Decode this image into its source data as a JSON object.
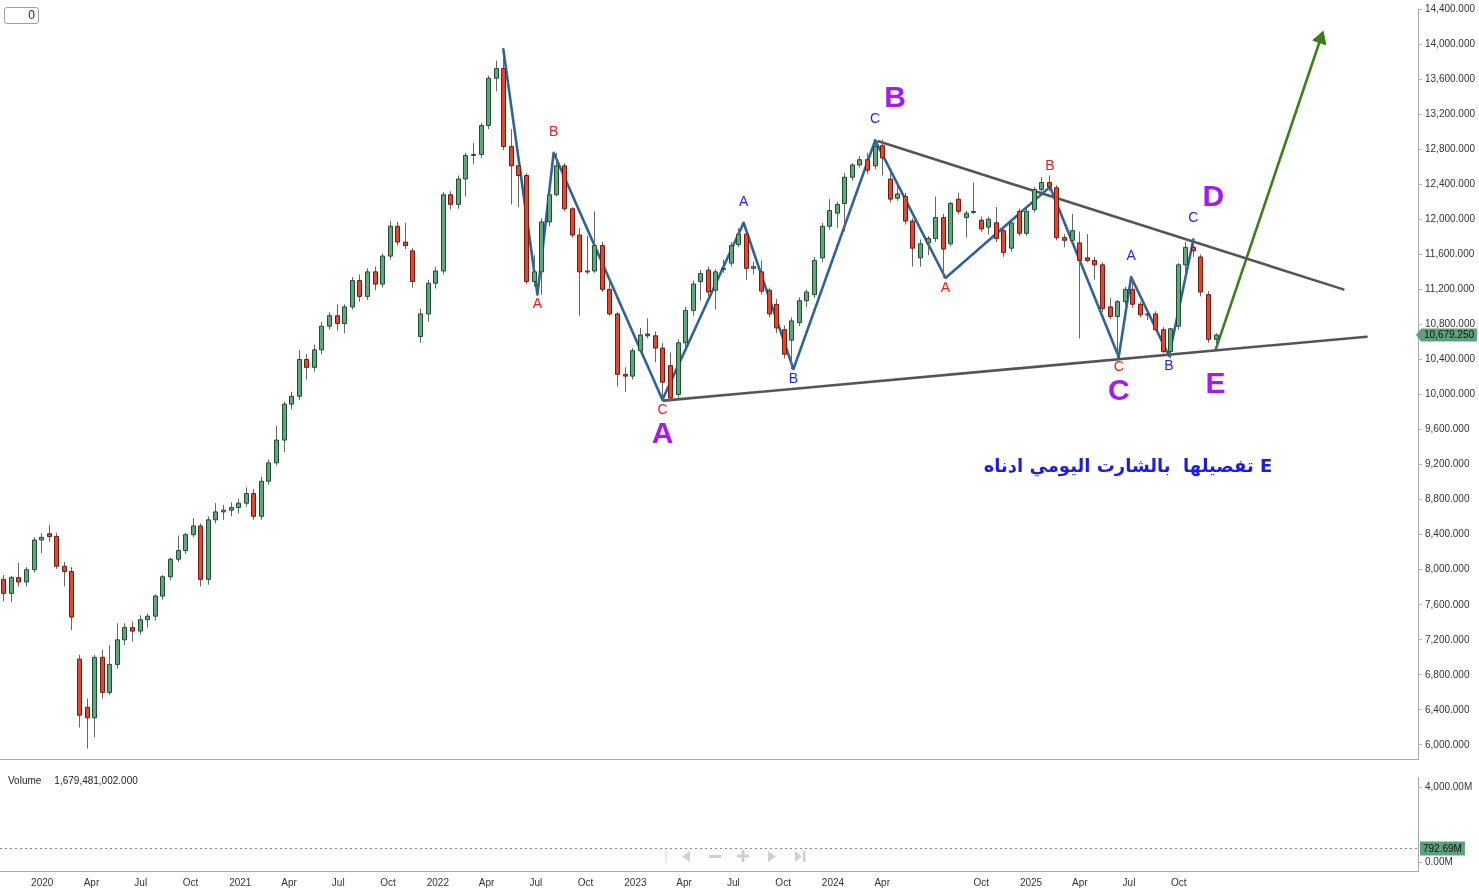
{
  "chart_data": [
    {
      "type": "candlestick",
      "x": [
        "2019-10-21",
        "2019-11-04",
        "2019-11-18",
        "2019-12-02",
        "2019-12-16",
        "2019-12-30",
        "2020-01-13",
        "2020-01-27",
        "2020-02-10",
        "2020-02-24",
        "2020-03-09",
        "2020-03-23",
        "2020-04-06",
        "2020-04-20",
        "2020-05-04",
        "2020-05-18",
        "2020-06-01",
        "2020-06-15",
        "2020-06-29",
        "2020-07-13",
        "2020-07-27",
        "2020-08-10",
        "2020-08-24",
        "2020-09-07",
        "2020-09-21",
        "2020-10-05",
        "2020-10-19",
        "2020-11-02",
        "2020-11-16",
        "2020-11-30",
        "2020-12-14",
        "2020-12-28",
        "2021-01-11",
        "2021-01-25",
        "2021-02-08",
        "2021-02-22",
        "2021-03-08",
        "2021-03-22",
        "2021-04-05",
        "2021-04-19",
        "2021-05-03",
        "2021-05-17",
        "2021-05-31",
        "2021-06-14",
        "2021-06-28",
        "2021-07-12",
        "2021-07-26",
        "2021-08-09",
        "2021-08-23",
        "2021-09-06",
        "2021-09-20",
        "2021-10-04",
        "2021-10-18",
        "2021-11-01",
        "2021-11-15",
        "2021-11-29",
        "2021-12-13",
        "2021-12-27",
        "2022-01-10",
        "2022-01-24",
        "2022-02-07",
        "2022-02-21",
        "2022-03-07",
        "2022-03-21",
        "2022-04-04",
        "2022-04-18",
        "2022-05-02",
        "2022-05-16",
        "2022-05-30",
        "2022-06-13",
        "2022-06-27",
        "2022-07-11",
        "2022-07-25",
        "2022-08-08",
        "2022-08-22",
        "2022-09-05",
        "2022-09-19",
        "2022-10-03",
        "2022-10-17",
        "2022-10-31",
        "2022-11-14",
        "2022-11-28",
        "2022-12-12",
        "2022-12-26",
        "2023-01-09",
        "2023-01-23",
        "2023-02-06",
        "2023-02-20",
        "2023-03-06",
        "2023-03-20",
        "2023-04-03",
        "2023-04-17",
        "2023-05-01",
        "2023-05-15",
        "2023-05-29",
        "2023-06-12",
        "2023-06-26",
        "2023-07-10",
        "2023-07-24",
        "2023-08-07",
        "2023-08-21",
        "2023-09-04",
        "2023-09-18",
        "2023-10-02",
        "2023-10-16",
        "2023-10-30",
        "2023-11-13",
        "2023-11-27",
        "2023-12-11",
        "2023-12-25",
        "2024-01-08",
        "2024-01-22",
        "2024-02-05",
        "2024-02-19",
        "2024-03-04",
        "2024-03-18",
        "2024-04-01",
        "2024-04-15",
        "2024-04-29",
        "2024-05-13",
        "2024-05-27",
        "2024-06-10",
        "2024-06-24",
        "2024-07-08",
        "2024-07-22",
        "2024-08-05",
        "2024-08-19",
        "2024-09-02",
        "2024-09-16",
        "2024-09-30",
        "2024-10-14",
        "2024-10-28",
        "2024-11-11",
        "2024-11-25",
        "2024-12-09",
        "2024-12-23",
        "2025-01-06",
        "2025-01-20",
        "2025-02-03",
        "2025-02-17",
        "2025-03-03",
        "2025-03-17",
        "2025-03-31",
        "2025-04-14",
        "2025-04-28",
        "2025-05-12",
        "2025-05-26",
        "2025-06-09",
        "2025-06-23",
        "2025-07-07",
        "2025-07-21",
        "2025-08-04",
        "2025-08-18",
        "2025-09-01",
        "2025-09-15",
        "2025-09-29",
        "2025-10-13",
        "2025-10-27",
        "2025-11-10",
        "2025-11-24",
        "2025-12-08"
      ],
      "ohlc": [
        [
          7890,
          7940,
          7640,
          7730
        ],
        [
          7730,
          7930,
          7630,
          7910
        ],
        [
          7910,
          8080,
          7810,
          7860
        ],
        [
          7860,
          8030,
          7810,
          8000
        ],
        [
          8000,
          8370,
          7970,
          8340
        ],
        [
          8340,
          8420,
          8190,
          8370
        ],
        [
          8410,
          8510,
          8320,
          8380
        ],
        [
          8380,
          8420,
          8010,
          8040
        ],
        [
          8040,
          8090,
          7810,
          7980
        ],
        [
          7980,
          8030,
          7310,
          7460
        ],
        [
          6980,
          7030,
          6200,
          6340
        ],
        [
          6430,
          6530,
          5960,
          6310
        ],
        [
          6310,
          7030,
          6090,
          7000
        ],
        [
          7000,
          7090,
          6530,
          6600
        ],
        [
          6600,
          7140,
          6570,
          6920
        ],
        [
          6920,
          7390,
          6870,
          7200
        ],
        [
          7200,
          7390,
          7140,
          7340
        ],
        [
          7340,
          7410,
          7180,
          7300
        ],
        [
          7300,
          7480,
          7260,
          7430
        ],
        [
          7430,
          7500,
          7340,
          7470
        ],
        [
          7470,
          7720,
          7420,
          7700
        ],
        [
          7700,
          7940,
          7660,
          7920
        ],
        [
          7920,
          8140,
          7880,
          8120
        ],
        [
          8120,
          8390,
          8090,
          8220
        ],
        [
          8220,
          8420,
          8180,
          8400
        ],
        [
          8400,
          8590,
          8370,
          8500
        ],
        [
          8500,
          8530,
          7810,
          7890
        ],
        [
          7890,
          8610,
          7830,
          8570
        ],
        [
          8570,
          8760,
          8530,
          8660
        ],
        [
          8660,
          8740,
          8570,
          8680
        ],
        [
          8680,
          8770,
          8610,
          8710
        ],
        [
          8710,
          8810,
          8640,
          8760
        ],
        [
          8760,
          8940,
          8720,
          8870
        ],
        [
          8870,
          8920,
          8570,
          8610
        ],
        [
          8610,
          9060,
          8570,
          9010
        ],
        [
          9010,
          9260,
          8970,
          9220
        ],
        [
          9220,
          9640,
          9190,
          9480
        ],
        [
          9480,
          9920,
          9340,
          9890
        ],
        [
          9890,
          10030,
          9830,
          9980
        ],
        [
          9980,
          10510,
          9940,
          10400
        ],
        [
          10400,
          10460,
          10170,
          10310
        ],
        [
          10310,
          10570,
          10260,
          10510
        ],
        [
          10510,
          10830,
          10460,
          10780
        ],
        [
          10780,
          10940,
          10740,
          10900
        ],
        [
          10900,
          11030,
          10730,
          10810
        ],
        [
          10810,
          11030,
          10700,
          11000
        ],
        [
          11000,
          11340,
          10970,
          11300
        ],
        [
          11300,
          11370,
          11060,
          11120
        ],
        [
          11120,
          11440,
          11080,
          11400
        ],
        [
          11400,
          11460,
          11190,
          11260
        ],
        [
          11260,
          11610,
          11220,
          11580
        ],
        [
          11580,
          11980,
          11540,
          11920
        ],
        [
          11920,
          11970,
          11700,
          11740
        ],
        [
          11740,
          11960,
          11660,
          11700
        ],
        [
          11640,
          11670,
          11220,
          11290
        ],
        [
          10660,
          10980,
          10590,
          10920
        ],
        [
          10920,
          11310,
          10830,
          11270
        ],
        [
          11270,
          11460,
          11210,
          11410
        ],
        [
          11410,
          12310,
          11370,
          12280
        ],
        [
          12280,
          12320,
          12110,
          12170
        ],
        [
          12170,
          12500,
          12120,
          12460
        ],
        [
          12460,
          12760,
          12260,
          12730
        ],
        [
          12730,
          12870,
          12630,
          12740
        ],
        [
          12740,
          13100,
          12700,
          13070
        ],
        [
          13070,
          13640,
          13030,
          13610
        ],
        [
          13610,
          13810,
          13460,
          13720
        ],
        [
          13720,
          13840,
          12790,
          12830
        ],
        [
          12830,
          13030,
          12170,
          12610
        ],
        [
          12610,
          12640,
          12140,
          12500
        ],
        [
          12500,
          12530,
          11260,
          11290
        ],
        [
          11290,
          11590,
          11230,
          11400
        ],
        [
          11400,
          12010,
          11140,
          11970
        ],
        [
          11970,
          12310,
          11920,
          12280
        ],
        [
          12280,
          12760,
          12260,
          12610
        ],
        [
          12610,
          12640,
          12090,
          12120
        ],
        [
          12120,
          12140,
          11790,
          11820
        ],
        [
          11820,
          11900,
          10900,
          11400
        ],
        [
          11400,
          11810,
          11370,
          11410
        ],
        [
          11410,
          12090,
          11390,
          11700
        ],
        [
          11700,
          11740,
          11170,
          11200
        ],
        [
          11200,
          11340,
          10900,
          10920
        ],
        [
          10920,
          10940,
          10090,
          10230
        ],
        [
          10230,
          10310,
          10030,
          10210
        ],
        [
          10210,
          10530,
          10170,
          10500
        ],
        [
          10500,
          10760,
          10480,
          10680
        ],
        [
          10690,
          10870,
          10640,
          10670
        ],
        [
          10670,
          10720,
          10370,
          10530
        ],
        [
          10530,
          10590,
          9930,
          10140
        ],
        [
          10330,
          10480,
          9920,
          9960
        ],
        [
          10000,
          10630,
          9940,
          10590
        ],
        [
          10590,
          11000,
          10540,
          10960
        ],
        [
          10960,
          11300,
          10900,
          11260
        ],
        [
          11290,
          11420,
          11070,
          11380
        ],
        [
          11420,
          11460,
          11120,
          11170
        ],
        [
          11190,
          11430,
          10970,
          11400
        ],
        [
          11430,
          11540,
          11390,
          11440
        ],
        [
          11500,
          11740,
          11460,
          11700
        ],
        [
          11710,
          11900,
          11680,
          11830
        ],
        [
          11830,
          11870,
          11310,
          11440
        ],
        [
          11440,
          11520,
          11370,
          11460
        ],
        [
          11400,
          11530,
          11140,
          11180
        ],
        [
          11190,
          11220,
          10880,
          10920
        ],
        [
          11030,
          11090,
          10700,
          10760
        ],
        [
          10740,
          10790,
          10410,
          10460
        ],
        [
          10620,
          10880,
          10290,
          10840
        ],
        [
          10820,
          11110,
          10780,
          11070
        ],
        [
          11070,
          11200,
          11000,
          11170
        ],
        [
          11140,
          11570,
          11100,
          11530
        ],
        [
          11560,
          11960,
          11510,
          11920
        ],
        [
          11920,
          12230,
          11880,
          12100
        ],
        [
          12070,
          12200,
          11900,
          12170
        ],
        [
          12180,
          12530,
          11860,
          12480
        ],
        [
          12480,
          12640,
          12440,
          12620
        ],
        [
          12620,
          12720,
          12590,
          12680
        ],
        [
          12680,
          12760,
          12520,
          12560
        ],
        [
          12610,
          12880,
          12570,
          12830
        ],
        [
          12840,
          12910,
          12500,
          12700
        ],
        [
          12460,
          12530,
          12190,
          12230
        ],
        [
          12240,
          12410,
          12210,
          12290
        ],
        [
          12260,
          12300,
          11940,
          11980
        ],
        [
          11980,
          12010,
          11460,
          11670
        ],
        [
          11560,
          11770,
          11460,
          11720
        ],
        [
          11730,
          11810,
          11590,
          11780
        ],
        [
          11780,
          12260,
          11740,
          12020
        ],
        [
          12020,
          12060,
          11330,
          11660
        ],
        [
          11720,
          12200,
          11690,
          12180
        ],
        [
          12230,
          12300,
          12060,
          12090
        ],
        [
          12020,
          12100,
          11790,
          12070
        ],
        [
          12080,
          12420,
          12060,
          12090
        ],
        [
          11990,
          12030,
          11860,
          11890
        ],
        [
          11910,
          12030,
          11830,
          12000
        ],
        [
          11960,
          12140,
          11740,
          11780
        ],
        [
          11870,
          11900,
          11570,
          11620
        ],
        [
          11670,
          11990,
          11630,
          11960
        ],
        [
          12090,
          12120,
          11810,
          11840
        ],
        [
          11840,
          12120,
          11810,
          12090
        ],
        [
          12110,
          12370,
          12080,
          12340
        ],
        [
          12340,
          12480,
          12310,
          12420
        ],
        [
          12420,
          12500,
          12320,
          12370
        ],
        [
          12360,
          12390,
          11760,
          11790
        ],
        [
          11790,
          11830,
          11680,
          11760
        ],
        [
          11760,
          12060,
          11720,
          11870
        ],
        [
          11730,
          11860,
          10640,
          11530
        ],
        [
          11560,
          11830,
          11510,
          11530
        ],
        [
          11530,
          11570,
          11310,
          11480
        ],
        [
          11480,
          11510,
          10940,
          10980
        ],
        [
          11000,
          11100,
          10860,
          10890
        ],
        [
          10890,
          11080,
          10400,
          11060
        ],
        [
          11060,
          11230,
          11020,
          11200
        ],
        [
          11200,
          11340,
          10990,
          11030
        ],
        [
          11030,
          11060,
          10880,
          10910
        ],
        [
          10910,
          10970,
          10850,
          10920
        ],
        [
          10920,
          10950,
          10730,
          10740
        ],
        [
          10740,
          10770,
          10470,
          10490
        ],
        [
          10490,
          10760,
          10410,
          10750
        ],
        [
          10780,
          11500,
          10740,
          11480
        ],
        [
          11480,
          11740,
          11310,
          11680
        ],
        [
          11680,
          11780,
          11570,
          11640
        ],
        [
          11570,
          11600,
          11120,
          11170
        ],
        [
          11140,
          11180,
          10590,
          10630
        ],
        [
          10630,
          10700,
          10530,
          10679.25
        ]
      ],
      "series": [
        {
          "type": "line",
          "color": "#2f6396",
          "x": [
            "2022-05-02",
            "2022-07-04",
            "2022-08-03",
            "2023-02-20"
          ],
          "values": [
            13940,
            11140,
            12760,
            9940
          ],
          "value_labels": [
            null,
            "A",
            "B",
            "C"
          ]
        },
        {
          "type": "line",
          "color": "#2f6396",
          "x": [
            "2023-02-20",
            "2023-07-20",
            "2023-10-20",
            "2024-03-19"
          ],
          "values": [
            9940,
            11960,
            10290,
            12900
          ],
          "value_labels": [
            null,
            "A",
            "B",
            "C"
          ]
        },
        {
          "type": "line",
          "color": "#2f6396",
          "x": [
            "2024-03-19",
            "2024-07-27",
            "2025-02-05",
            "2025-06-12"
          ],
          "values": [
            12900,
            11330,
            12370,
            10430
          ],
          "value_labels": [
            null,
            "A",
            "B",
            "C"
          ]
        },
        {
          "type": "line",
          "color": "#2f6396",
          "x": [
            "2025-06-12",
            "2025-07-05",
            "2025-09-13",
            "2025-10-28"
          ],
          "values": [
            10430,
            11340,
            10440,
            11770
          ],
          "value_labels": [
            null,
            "A",
            "B",
            "C"
          ]
        },
        {
          "type": "line",
          "color": "#555555",
          "x": [
            "2024-03-25",
            "2026-08-01"
          ],
          "values": [
            12890,
            11200
          ]
        },
        {
          "type": "line",
          "color": "#555555",
          "x": [
            "2023-02-22",
            "2026-09-13"
          ],
          "values": [
            9930,
            10660
          ]
        },
        {
          "type": "line",
          "color": "#3d7f1d",
          "x": [
            "2025-12-08",
            "2026-06-20"
          ],
          "values": [
            10510,
            14060
          ],
          "marker": "triangle"
        }
      ],
      "xlim": [
        "2019-10-15",
        "2026-12-17"
      ],
      "ylim": [
        5840,
        14400
      ],
      "yticks": [
        {
          "value": 6000,
          "label": "6,000.000"
        },
        {
          "value": 6400,
          "label": "6,400.000"
        },
        {
          "value": 6800,
          "label": "6,800.000"
        },
        {
          "value": 7200,
          "label": "7,200.000"
        },
        {
          "value": 7600,
          "label": "7,600.000"
        },
        {
          "value": 8000,
          "label": "8,000.000"
        },
        {
          "value": 8400,
          "label": "8,400.000"
        },
        {
          "value": 8800,
          "label": "8,800.000"
        },
        {
          "value": 9200,
          "label": "9,200.000"
        },
        {
          "value": 9600,
          "label": "9,600.000"
        },
        {
          "value": 10000,
          "label": "10,000.000"
        },
        {
          "value": 10400,
          "label": "10,400.000"
        },
        {
          "value": 10800,
          "label": "10,800.000"
        },
        {
          "value": 11200,
          "label": "11,200.000"
        },
        {
          "value": 11600,
          "label": "11,600.000"
        },
        {
          "value": 12000,
          "label": "12,000.000"
        },
        {
          "value": 12400,
          "label": "12,400.000"
        },
        {
          "value": 12800,
          "label": "12,800.000"
        },
        {
          "value": 13200,
          "label": "13,200.000"
        },
        {
          "value": 13600,
          "label": "13,600.000"
        },
        {
          "value": 14000,
          "label": "14,000.000"
        },
        {
          "value": 14400,
          "label": "14,400.000"
        }
      ],
      "tick_labels": "y",
      "annotations": [
        "0",
        "E تفصيلها  بالشارت اليومي ادناه",
        "10,679.250",
        {
          "text": "A",
          "x": "2023-02-20",
          "y": 9940
        },
        {
          "text": "B",
          "x": "2024-03-19",
          "y": 12900
        },
        {
          "text": "C",
          "x": "2025-06-12",
          "y": 10430
        },
        {
          "text": "D",
          "x": "2025-10-28",
          "y": 11770
        },
        {
          "text": "E",
          "x": "2025-12-08",
          "y": 10510
        }
      ]
    },
    {
      "type": "bar",
      "title": "Volume",
      "annotations": [
        "1,679,481,002.000"
      ],
      "xlim": [
        "2019-10-15",
        "2026-12-17"
      ],
      "xticks": [
        {
          "value": "2020-01",
          "label": "2020"
        },
        {
          "value": "2020-04",
          "label": "Apr"
        },
        {
          "value": "2020-07",
          "label": "Jul"
        },
        {
          "value": "2020-10",
          "label": "Oct"
        },
        {
          "value": "2021-01",
          "label": "2021"
        },
        {
          "value": "2021-04",
          "label": "Apr"
        },
        {
          "value": "2021-07",
          "label": "Jul"
        },
        {
          "value": "2021-10",
          "label": "Oct"
        },
        {
          "value": "2022-01",
          "label": "2022"
        },
        {
          "value": "2022-04",
          "label": "Apr"
        },
        {
          "value": "2022-07",
          "label": "Jul"
        },
        {
          "value": "2022-10",
          "label": "Oct"
        },
        {
          "value": "2023-01",
          "label": "2023"
        },
        {
          "value": "2023-04",
          "label": "Apr"
        },
        {
          "value": "2023-07",
          "label": "Jul"
        },
        {
          "value": "2023-10",
          "label": "Oct"
        },
        {
          "value": "2024-01",
          "label": "2024"
        },
        {
          "value": "2024-04",
          "label": "Apr"
        },
        {
          "value": "2024-10",
          "label": "Oct"
        },
        {
          "value": "2025-01",
          "label": "2025"
        },
        {
          "value": "2025-04",
          "label": "Apr"
        },
        {
          "value": "2025-07",
          "label": "Jul"
        },
        {
          "value": "2025-10",
          "label": "Oct"
        }
      ],
      "ylim": [
        -450,
        4550
      ],
      "yticks": [
        {
          "value": 0,
          "label": "0.00M"
        },
        {
          "value": 4000,
          "label": "4,000.00M"
        }
      ],
      "ref_lines": [
        {
          "axis": "y",
          "value": 792.69,
          "label": "792.69M",
          "color": "#5da17a"
        }
      ]
    }
  ]
}
